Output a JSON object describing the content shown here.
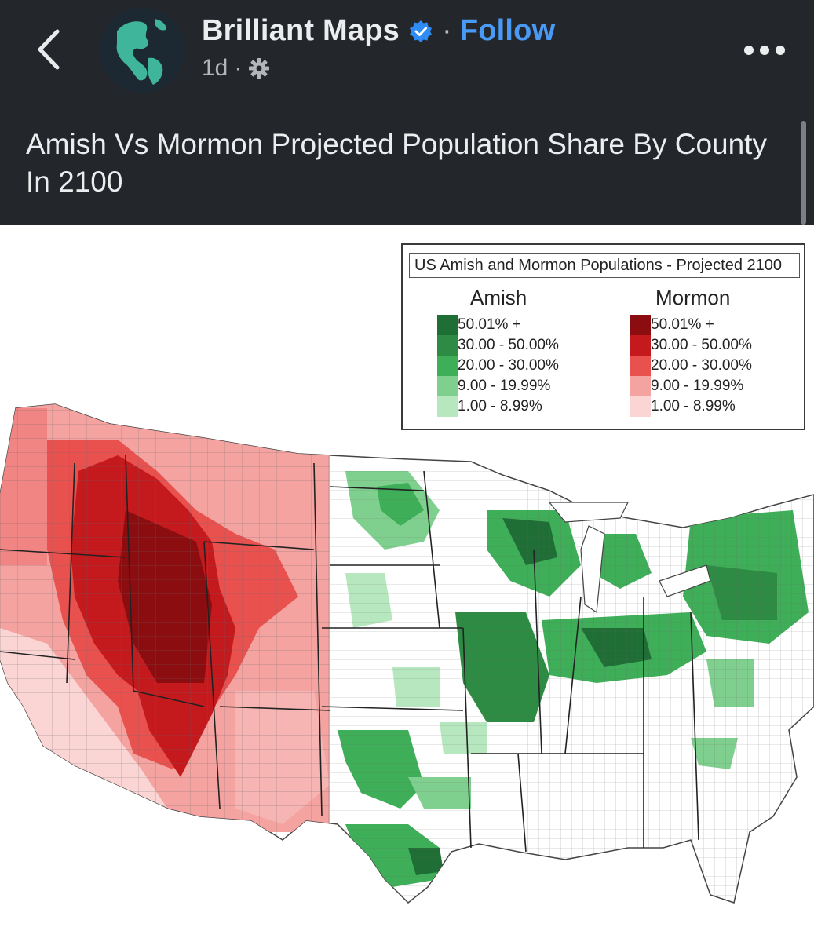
{
  "post": {
    "page_name": "Brilliant Maps",
    "separator": "·",
    "follow_label": "Follow",
    "time": "1d",
    "meta_sep": "·",
    "caption": "Amish Vs Mormon Projected Population Share By County In 2100"
  },
  "icons": {
    "back": "chevron-left-icon",
    "verified": "verified-badge-icon",
    "privacy": "gear-icon",
    "more": "more-horizontal-icon"
  },
  "map": {
    "legend_title": "US Amish and Mormon Populations - Projected 2100",
    "amish": {
      "label": "Amish",
      "ranges": [
        {
          "label": "50.01% +",
          "color": "#1f6e35"
        },
        {
          "label": "30.00 - 50.00%",
          "color": "#2e8b44"
        },
        {
          "label": "20.00 - 30.00%",
          "color": "#3fae58"
        },
        {
          "label": "9.00 - 19.99%",
          "color": "#7fd08e"
        },
        {
          "label": "1.00 - 8.99%",
          "color": "#b7e7bf"
        }
      ]
    },
    "mormon": {
      "label": "Mormon",
      "ranges": [
        {
          "label": "50.01% +",
          "color": "#8b0d10"
        },
        {
          "label": "30.00 - 50.00%",
          "color": "#c41a1e"
        },
        {
          "label": "20.00 - 30.00%",
          "color": "#e9514f"
        },
        {
          "label": "9.00 - 19.99%",
          "color": "#f4a3a1"
        },
        {
          "label": "1.00 - 8.99%",
          "color": "#fbd5d4"
        }
      ]
    }
  },
  "colors": {
    "header_bg": "#23262b",
    "follow": "#4a9af5",
    "verified": "#2f8cf5"
  }
}
